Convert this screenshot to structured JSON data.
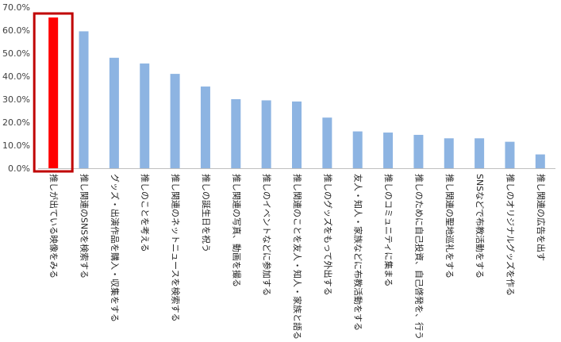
{
  "chart_data": {
    "type": "bar",
    "title": "",
    "xlabel": "",
    "ylabel": "",
    "ylim": [
      0,
      70
    ],
    "yticks": [
      0,
      10,
      20,
      30,
      40,
      50,
      60,
      70
    ],
    "ytick_labels": [
      "0.0%",
      "10.0%",
      "20.0%",
      "30.0%",
      "40.0%",
      "50.0%",
      "60.0%",
      "70.0%"
    ],
    "grid": false,
    "categories": [
      "推しが出ている映像をみる",
      "推し関連のSNSを検索する",
      "グッズ・出演作品を購入・収集をする",
      "推しのことを考える",
      "推し関連のネットニュースを検索する",
      "推しの誕生日を祝う",
      "推し関連の写真、動画を撮る",
      "推しのイベントなどに参加する",
      "推し関連のことを友人・知人・家族と語る",
      "推しのグッズをもって外出する",
      "友人・知人・家族などに布教活動をする",
      "推しのコミュニティに集まる",
      "推しのために自己投資、自己啓発を、行う",
      "推し関連の聖地巡礼をする",
      "SNSなどで布教活動をする",
      "推しのオリジナルグッズを作る",
      "推し関連の広告を出す"
    ],
    "values": [
      65.5,
      59.5,
      48.0,
      45.5,
      41.0,
      35.5,
      30.0,
      29.5,
      29.0,
      22.0,
      16.0,
      15.5,
      14.5,
      13.0,
      13.0,
      11.5,
      6.0
    ],
    "highlight_index": 0,
    "colors": {
      "bar": "#8DB4E2",
      "highlight": "#FF0000",
      "highlight_frame": "#C00000",
      "axis": "#BFBFBF"
    }
  }
}
